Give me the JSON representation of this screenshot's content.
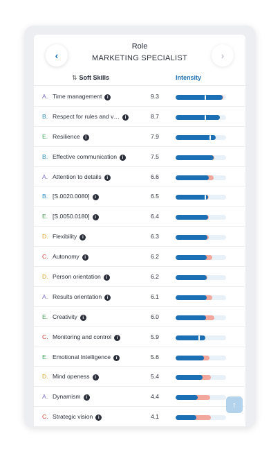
{
  "header": {
    "role_label": "Role",
    "role_value": "MARKETING SPECIALIST",
    "prev_icon": "‹",
    "next_icon": "›"
  },
  "columns": {
    "sort_icon": "⇅",
    "skills_label": "Soft Skills",
    "intensity_label": "Intensity"
  },
  "category_colors": {
    "A.": "#7a6fc4",
    "B.": "#2f8fc4",
    "C.": "#d9463a",
    "D.": "#e0a52b",
    "E.": "#4aa85b"
  },
  "colors": {
    "bar_blue": "#1a6fb5",
    "bar_pink": "#f2a79c",
    "bar_track": "#e8f0f8",
    "scroll_button": "#b3d3ec"
  },
  "rows": [
    {
      "cat": "A.",
      "name": "Time management",
      "score": "9.3",
      "value": 9.3,
      "target": 9.4,
      "notch": 0.58
    },
    {
      "cat": "B.",
      "name": "Respect for rules and v…",
      "score": "8.7",
      "value": 8.7,
      "target": 8.8,
      "notch": 0.58
    },
    {
      "cat": "E.",
      "name": "Resilience",
      "score": "7.9",
      "value": 7.9,
      "target": 8.0,
      "notch": 0.67
    },
    {
      "cat": "B.",
      "name": "Effective communication",
      "score": "7.5",
      "value": 7.5,
      "target": 7.7,
      "notch": null
    },
    {
      "cat": "A.",
      "name": "Attention to details",
      "score": "6.6",
      "value": 6.6,
      "target": 7.6,
      "notch": null
    },
    {
      "cat": "B.",
      "name": "[S.0020.0080]",
      "score": "6.5",
      "value": 6.5,
      "target": 6.6,
      "notch": 0.58
    },
    {
      "cat": "E.",
      "name": "[S.0050.0180]",
      "score": "6.4",
      "value": 6.4,
      "target": 6.6,
      "notch": null
    },
    {
      "cat": "D.",
      "name": "Flexibility",
      "score": "6.3",
      "value": 6.3,
      "target": 6.6,
      "notch": null
    },
    {
      "cat": "C.",
      "name": "Autonomy",
      "score": "6.2",
      "value": 6.2,
      "target": 7.2,
      "notch": null
    },
    {
      "cat": "D.",
      "name": "Person orientation",
      "score": "6.2",
      "value": 6.2,
      "target": 6.3,
      "notch": null
    },
    {
      "cat": "A.",
      "name": "Results orientation",
      "score": "6.1",
      "value": 6.1,
      "target": 7.3,
      "notch": null
    },
    {
      "cat": "E.",
      "name": "Creativity",
      "score": "6.0",
      "value": 6.0,
      "target": 7.7,
      "notch": null
    },
    {
      "cat": "C.",
      "name": "Monitoring and control",
      "score": "5.9",
      "value": 5.9,
      "target": 5.9,
      "notch": 0.45
    },
    {
      "cat": "E.",
      "name": "Emotional Intelligence",
      "score": "5.6",
      "value": 5.6,
      "target": 6.7,
      "notch": null
    },
    {
      "cat": "D.",
      "name": "Mind openess",
      "score": "5.4",
      "value": 5.4,
      "target": 7.0,
      "notch": null
    },
    {
      "cat": "A.",
      "name": "Dynamism",
      "score": "4.4",
      "value": 4.4,
      "target": 6.8,
      "notch": null
    },
    {
      "cat": "C.",
      "name": "Strategic vision",
      "score": "4.1",
      "value": 4.1,
      "target": 7.0,
      "notch": null
    }
  ],
  "scroll_top_icon": "↑"
}
